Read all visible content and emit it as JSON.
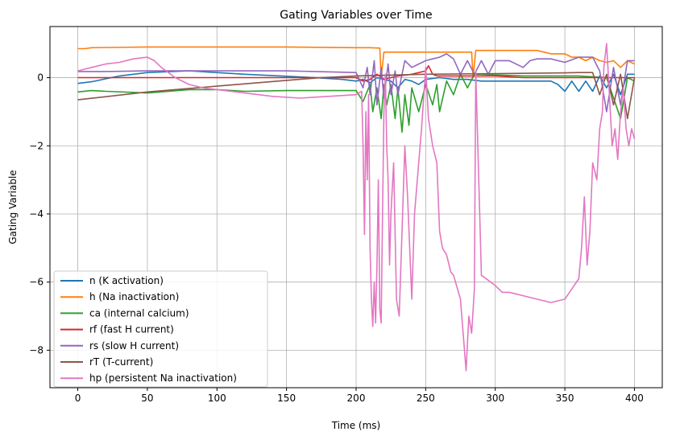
{
  "chart_data": {
    "type": "line",
    "title": "Gating Variables over Time",
    "xlabel": "Time (ms)",
    "ylabel": "Gating Variable",
    "xlim": [
      -20,
      420
    ],
    "ylim": [
      -9.1,
      1.5
    ],
    "xticks": [
      0,
      50,
      100,
      150,
      200,
      250,
      300,
      350,
      400
    ],
    "xtick_labels": [
      "0",
      "50",
      "100",
      "150",
      "200",
      "250",
      "300",
      "350",
      "400"
    ],
    "yticks": [
      0,
      -2,
      -4,
      -6,
      -8
    ],
    "ytick_labels": [
      "0",
      "−2",
      "−4",
      "−6",
      "−8"
    ],
    "grid": true,
    "legend_position": "lower-left",
    "series": [
      {
        "name": "n (K activation)",
        "color": "#1f77b4",
        "x": [
          0,
          10,
          30,
          50,
          80,
          120,
          170,
          190,
          200,
          205,
          210,
          215,
          220,
          225,
          230,
          235,
          240,
          245,
          250,
          260,
          270,
          280,
          290,
          300,
          310,
          320,
          330,
          340,
          345,
          350,
          355,
          360,
          365,
          370,
          375,
          380,
          385,
          390,
          395,
          400
        ],
        "y": [
          -0.17,
          -0.12,
          0.05,
          0.15,
          0.2,
          0.1,
          0.0,
          -0.05,
          -0.1,
          -0.05,
          -0.15,
          0.0,
          -0.05,
          -0.1,
          -0.3,
          -0.05,
          -0.1,
          -0.2,
          -0.05,
          0.0,
          -0.05,
          -0.05,
          -0.1,
          -0.1,
          -0.1,
          -0.1,
          -0.1,
          -0.1,
          -0.2,
          -0.4,
          -0.1,
          -0.4,
          -0.1,
          -0.4,
          0.05,
          -0.3,
          0.1,
          -0.5,
          0.1,
          0.1
        ]
      },
      {
        "name": "h (Na inactivation)",
        "color": "#ff7f0e",
        "x": [
          0,
          5,
          10,
          50,
          100,
          150,
          200,
          210,
          215,
          217,
          218,
          220,
          225,
          230,
          240,
          250,
          260,
          270,
          280,
          283,
          284,
          286,
          290,
          300,
          310,
          320,
          330,
          335,
          340,
          350,
          355,
          360,
          365,
          370,
          375,
          380,
          385,
          390,
          395,
          400
        ],
        "y": [
          0.85,
          0.85,
          0.88,
          0.9,
          0.9,
          0.9,
          0.88,
          0.88,
          0.87,
          0.87,
          0.0,
          0.75,
          0.75,
          0.75,
          0.75,
          0.75,
          0.75,
          0.75,
          0.75,
          0.75,
          0.0,
          0.8,
          0.8,
          0.8,
          0.8,
          0.8,
          0.8,
          0.75,
          0.7,
          0.7,
          0.6,
          0.6,
          0.5,
          0.6,
          0.5,
          0.45,
          0.5,
          0.3,
          0.5,
          0.4
        ]
      },
      {
        "name": "ca (internal calcium)",
        "color": "#2ca02c",
        "x": [
          0,
          10,
          20,
          50,
          80,
          100,
          120,
          150,
          180,
          200,
          205,
          210,
          212,
          215,
          218,
          220,
          222,
          225,
          228,
          230,
          233,
          235,
          238,
          240,
          245,
          250,
          255,
          258,
          260,
          265,
          270,
          275,
          280,
          285,
          290,
          300,
          320,
          340,
          360,
          380,
          390,
          395,
          400
        ],
        "y": [
          -0.42,
          -0.38,
          -0.4,
          -0.45,
          -0.35,
          -0.35,
          -0.4,
          -0.38,
          -0.38,
          -0.38,
          -0.7,
          -0.2,
          -1.0,
          -0.3,
          -1.2,
          -0.2,
          -0.8,
          -0.2,
          -1.2,
          -0.3,
          -1.6,
          -0.5,
          -1.4,
          -0.3,
          -1.0,
          -0.2,
          -0.8,
          -0.2,
          -1.0,
          -0.1,
          -0.5,
          0.1,
          -0.3,
          0.1,
          0.1,
          0.08,
          0.05,
          0.05,
          0.05,
          0.0,
          -1.2,
          0.0,
          -0.1
        ]
      },
      {
        "name": "rf (fast H current)",
        "color": "#d62728",
        "x": [
          0,
          50,
          100,
          150,
          200,
          205,
          210,
          215,
          220,
          230,
          240,
          250,
          252,
          255,
          258,
          260,
          270,
          280,
          300,
          320,
          340,
          360,
          380,
          400
        ],
        "y": [
          0.0,
          0.0,
          0.0,
          0.0,
          0.0,
          -0.1,
          -0.05,
          0.1,
          -0.05,
          0.05,
          0.1,
          0.2,
          0.35,
          0.1,
          0.05,
          0.05,
          0.05,
          0.05,
          0.05,
          0.0,
          0.0,
          0.0,
          0.0,
          0.0
        ]
      },
      {
        "name": "rs (slow H current)",
        "color": "#9467bd",
        "x": [
          0,
          20,
          50,
          100,
          150,
          200,
          205,
          208,
          210,
          213,
          215,
          218,
          220,
          223,
          225,
          228,
          230,
          235,
          240,
          245,
          250,
          255,
          260,
          265,
          270,
          275,
          280,
          285,
          290,
          295,
          300,
          310,
          320,
          325,
          330,
          340,
          350,
          360,
          370,
          375,
          380,
          385,
          390,
          395,
          400
        ],
        "y": [
          0.18,
          0.18,
          0.2,
          0.2,
          0.2,
          0.15,
          -0.3,
          0.3,
          -0.5,
          0.5,
          -0.8,
          0.3,
          -0.6,
          0.4,
          -0.5,
          0.2,
          -0.5,
          0.5,
          0.3,
          0.4,
          0.5,
          0.55,
          0.6,
          0.7,
          0.55,
          0.1,
          0.5,
          0.1,
          0.5,
          0.1,
          0.5,
          0.5,
          0.3,
          0.5,
          0.55,
          0.55,
          0.45,
          0.6,
          0.6,
          0.2,
          -1.0,
          0.3,
          -0.8,
          0.5,
          0.5
        ]
      },
      {
        "name": "rT (T-current)",
        "color": "#8c564b",
        "x": [
          0,
          50,
          100,
          150,
          175,
          200,
          250,
          300,
          350,
          360,
          370,
          375,
          380,
          385,
          390,
          395,
          400
        ],
        "y": [
          -0.65,
          -0.42,
          -0.25,
          -0.08,
          0.0,
          0.05,
          0.1,
          0.12,
          0.14,
          0.15,
          0.15,
          -0.5,
          0.1,
          -0.8,
          0.1,
          -1.2,
          0.0
        ]
      },
      {
        "name": "hp (persistent Na inactivation)",
        "color": "#e377c2",
        "x": [
          0,
          10,
          20,
          30,
          40,
          50,
          55,
          60,
          70,
          80,
          90,
          100,
          120,
          140,
          160,
          180,
          200,
          204,
          205,
          206,
          207,
          208,
          209,
          210,
          211,
          212,
          213,
          214,
          215,
          216,
          217,
          218,
          219,
          220,
          221,
          222,
          223,
          224,
          225,
          227,
          229,
          231,
          233,
          235,
          237,
          240,
          242,
          245,
          247,
          250,
          252,
          255,
          258,
          260,
          262,
          265,
          268,
          270,
          275,
          279,
          281,
          283,
          285,
          286,
          290,
          300,
          305,
          310,
          320,
          330,
          340,
          350,
          355,
          360,
          362,
          364,
          366,
          368,
          370,
          373,
          375,
          377,
          378,
          380,
          382,
          384,
          386,
          388,
          390,
          392,
          394,
          396,
          398,
          400
        ],
        "y": [
          0.2,
          0.3,
          0.4,
          0.45,
          0.55,
          0.6,
          0.5,
          0.3,
          0.0,
          -0.2,
          -0.3,
          -0.35,
          -0.45,
          -0.55,
          -0.6,
          -0.55,
          -0.5,
          -0.4,
          -2.0,
          -4.6,
          -1.0,
          -3.0,
          -0.5,
          -5.0,
          -6.5,
          -7.3,
          -6.0,
          -7.2,
          -5.5,
          -3.0,
          -6.8,
          -7.2,
          -4.0,
          -1.0,
          0.1,
          -2.0,
          -3.0,
          -5.5,
          -4.0,
          -2.5,
          -6.5,
          -7.0,
          -4.5,
          -2.0,
          -3.5,
          -6.5,
          -4.0,
          -2.5,
          -1.5,
          0.3,
          -1.2,
          -2.0,
          -2.5,
          -4.5,
          -5.0,
          -5.2,
          -5.7,
          -5.8,
          -6.5,
          -8.6,
          -7.0,
          -7.5,
          -6.2,
          0.2,
          -5.8,
          -6.1,
          -6.3,
          -6.3,
          -6.4,
          -6.5,
          -6.6,
          -6.5,
          -6.2,
          -5.9,
          -5.0,
          -3.5,
          -5.5,
          -4.5,
          -2.5,
          -3.0,
          -1.5,
          -1.0,
          0.3,
          1.0,
          -0.5,
          -2.0,
          -1.5,
          -2.4,
          -1.0,
          -0.3,
          -1.5,
          -2.0,
          -1.5,
          -1.8
        ]
      }
    ]
  }
}
